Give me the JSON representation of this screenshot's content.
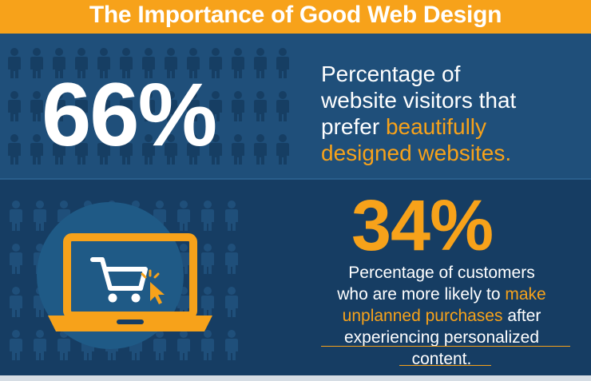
{
  "header": {
    "title": "The Importance of Good Web Design"
  },
  "colors": {
    "accent": "#f7a21a",
    "panel_top": "#1f4f7a",
    "panel_bottom": "#163d63",
    "people": "#163e63"
  },
  "stat1": {
    "value": "66%",
    "line1": "Percentage of",
    "line2": "website visitors that",
    "line3_plain": "prefer ",
    "line3_highlight": "beautifully",
    "line4_highlight": "designed websites."
  },
  "stat2": {
    "value": "34%",
    "line1": "Percentage of customers",
    "line2_plain": "who are more likely to ",
    "line2_highlight": "make",
    "line3_highlight": "unplanned purchases",
    "line3_plain": " after",
    "line4": "experiencing personalized",
    "line5": "content."
  },
  "icons": {
    "laptop": "laptop-cart-icon",
    "people": "person-silhouette-icon"
  }
}
